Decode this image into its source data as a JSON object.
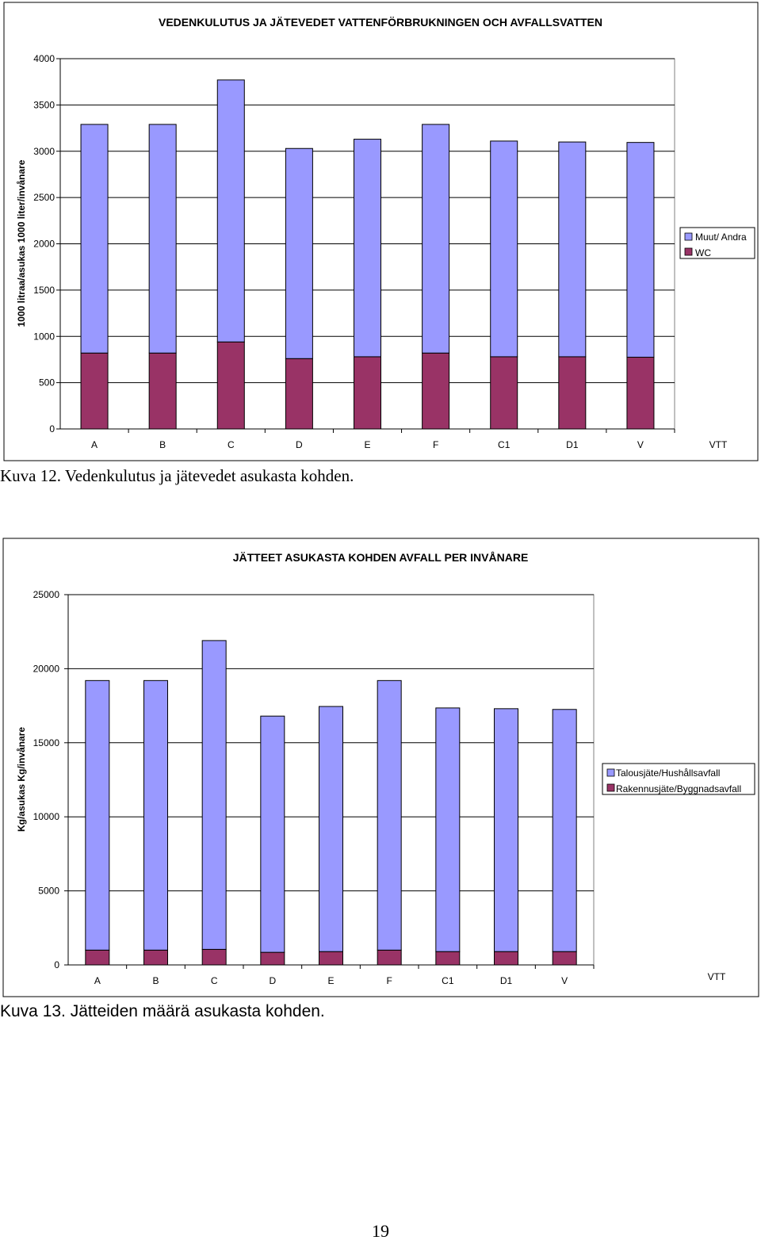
{
  "chart_data": [
    {
      "type": "bar",
      "stacked": true,
      "title": "VEDENKULUTUS JA JÄTEVEDET VATTENFÖRBRUKNINGEN OCH AVFALLSVATTEN",
      "ylabel": "1000 litraa/asukas 1000 liter/invånare",
      "xlabel": "",
      "ylim": [
        0,
        4000
      ],
      "yticks": [
        "0",
        "500",
        "1000",
        "1500",
        "2000",
        "2500",
        "3000",
        "3500",
        "4000"
      ],
      "categories": [
        "A",
        "B",
        "C",
        "D",
        "E",
        "F",
        "C1",
        "D1",
        "V"
      ],
      "series": [
        {
          "name": "WC",
          "color": "#993366",
          "values": [
            820,
            820,
            940,
            760,
            780,
            820,
            780,
            780,
            775
          ]
        },
        {
          "name": "Muut/ Andra",
          "color": "#9999FF",
          "values": [
            2470,
            2470,
            2830,
            2270,
            2350,
            2470,
            2330,
            2320,
            2320
          ]
        }
      ],
      "legend": "right",
      "grid": true,
      "annotation": "VTT"
    },
    {
      "type": "bar",
      "stacked": true,
      "title": "JÄTTEET ASUKASTA KOHDEN AVFALL PER INVÅNARE",
      "ylabel": "Kg/asukas Kg/invånare",
      "xlabel": "",
      "ylim": [
        0,
        25000
      ],
      "yticks": [
        "0",
        "5000",
        "10000",
        "15000",
        "20000",
        "25000"
      ],
      "categories": [
        "A",
        "B",
        "C",
        "D",
        "E",
        "F",
        "C1",
        "D1",
        "V"
      ],
      "series": [
        {
          "name": "Rakennusjäte/Byggnadsavfall",
          "color": "#993366",
          "values": [
            1000,
            1000,
            1050,
            850,
            900,
            1000,
            900,
            900,
            900
          ]
        },
        {
          "name": "Talousjäte/Hushållsavfall",
          "color": "#9999FF",
          "values": [
            18200,
            18200,
            20850,
            15950,
            16550,
            18200,
            16450,
            16400,
            16350
          ]
        }
      ],
      "legend": "right",
      "grid": true,
      "annotation": "VTT"
    }
  ],
  "captions": {
    "fig12": "Kuva 12. Vedenkulutus ja jätevedet asukasta kohden.",
    "fig13": "Kuva 13. Jätteiden määrä asukasta kohden."
  },
  "page_number": "19"
}
